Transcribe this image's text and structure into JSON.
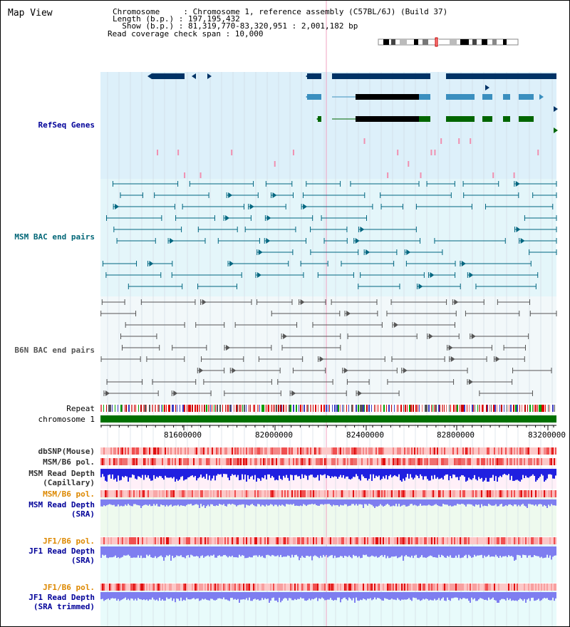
{
  "page": {
    "title": "Map View"
  },
  "header": {
    "lines": [
      "Chromosome     : Chromosome 1, reference assembly (C57BL/6J) (Build 37)",
      "Length (b.p.) : 197,195,432",
      "  Show (b.p.) : 81,319,770-83,320,951 : 2,001,182 bp",
      "Read coverage check span : 10,000"
    ]
  },
  "tracks": {
    "refseq": "RefSeq Genes",
    "msm_bac": "MSM BAC end pairs",
    "b6n_bac": "B6N BAC end pairs",
    "repeat": "Repeat",
    "chromosome": "chromosome 1",
    "dbsnp": "dbSNP(Mouse)",
    "msm_b6_pol_1": "MSM/B6 pol.",
    "msm_read_depth_cap_1": "MSM Read Depth",
    "msm_read_depth_cap_2": "(Capillary)",
    "msm_b6_pol_2": "MSM/B6 pol.",
    "msm_read_depth_sra_1": "MSM Read Depth",
    "msm_read_depth_sra_2": "(SRA)",
    "jf1_b6_pol_1": "JF1/B6 pol.",
    "jf1_read_depth_sra_1": "JF1 Read Depth",
    "jf1_read_depth_sra_2": "(SRA)",
    "jf1_b6_pol_2": "JF1/B6 pol.",
    "jf1_read_depth_trim_1": "JF1 Read Depth",
    "jf1_read_depth_trim_2": "(SRA trimmed)"
  },
  "ruler": {
    "ticks": [
      "81600000",
      "82000000",
      "82400000",
      "82800000",
      "83200000"
    ]
  },
  "colors": {
    "refseq_bg": "#ddf0fa",
    "msm_bac_bg": "#e4f6fa",
    "b6n_bac_bg": "#f2f8fa",
    "gene_dark": "#003366",
    "gene_mid": "#3b8fbf",
    "gene_green": "#006600",
    "msm_line": "#006680",
    "b6n_line": "#555555",
    "chrom": "#007000",
    "depth_blue": "#2020e0",
    "depth_sra": "#7e7ef0",
    "pol_red": "#e83030",
    "label_blue": "#000099",
    "label_teal": "#006677",
    "label_orange": "#dd8800"
  }
}
